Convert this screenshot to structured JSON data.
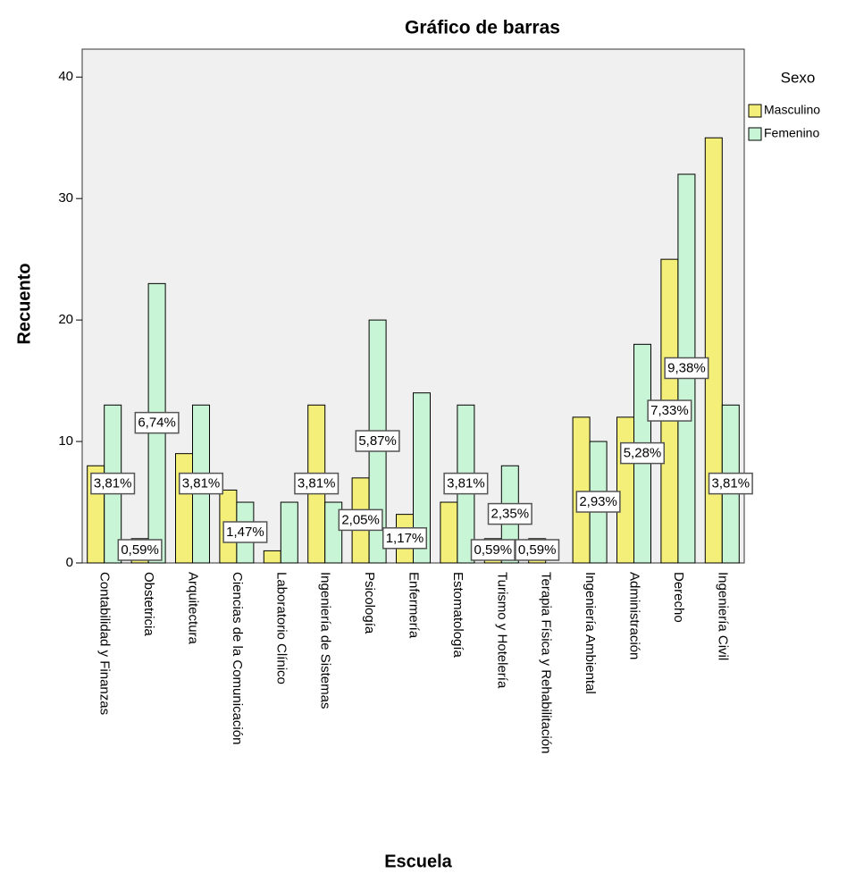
{
  "chart_data": {
    "type": "bar",
    "title": "Gráfico de barras",
    "x_label": "Escuela",
    "y_label": "Recuento",
    "legend_title": "Sexo",
    "legend_position": "right",
    "categories": [
      "Contabilidad y Finanzas",
      "Obstetricia",
      "Arquitectura",
      "Ciencias de la Comunicación",
      "Laboratorio Clínico",
      "Ingeniería de Sistemas",
      "Psicología",
      "Enfermería",
      "Estomatología",
      "Turismo y Hotelería",
      "Terapia Física y Rehabilitación",
      "Ingeniería Ambiental",
      "Administración",
      "Derecho",
      "Ingeniería Civil"
    ],
    "series": [
      {
        "name": "Masculino",
        "color": "#f4ef78",
        "values": [
          8,
          2,
          9,
          6,
          1,
          13,
          7,
          4,
          5,
          2,
          2,
          12,
          12,
          25,
          35
        ],
        "data_labels": [
          null,
          "0,59%",
          null,
          null,
          null,
          "3,81%",
          "2,05%",
          "1,17%",
          null,
          "0,59%",
          "0,59%",
          null,
          null,
          "7,33%",
          null
        ]
      },
      {
        "name": "Femenino",
        "color": "#c8f5d6",
        "values": [
          13,
          23,
          13,
          5,
          5,
          5,
          20,
          14,
          13,
          8,
          0,
          10,
          18,
          32,
          13
        ],
        "data_labels": [
          "3,81%",
          "6,74%",
          "3,81%",
          "1,47%",
          null,
          null,
          "5,87%",
          null,
          "3,81%",
          "2,35%",
          null,
          "2,93%",
          "5,28%",
          "9,38%",
          "3,81%"
        ]
      }
    ],
    "ylim": [
      0,
      42.3
    ],
    "yticks": [
      0,
      10,
      20,
      30,
      40
    ]
  }
}
